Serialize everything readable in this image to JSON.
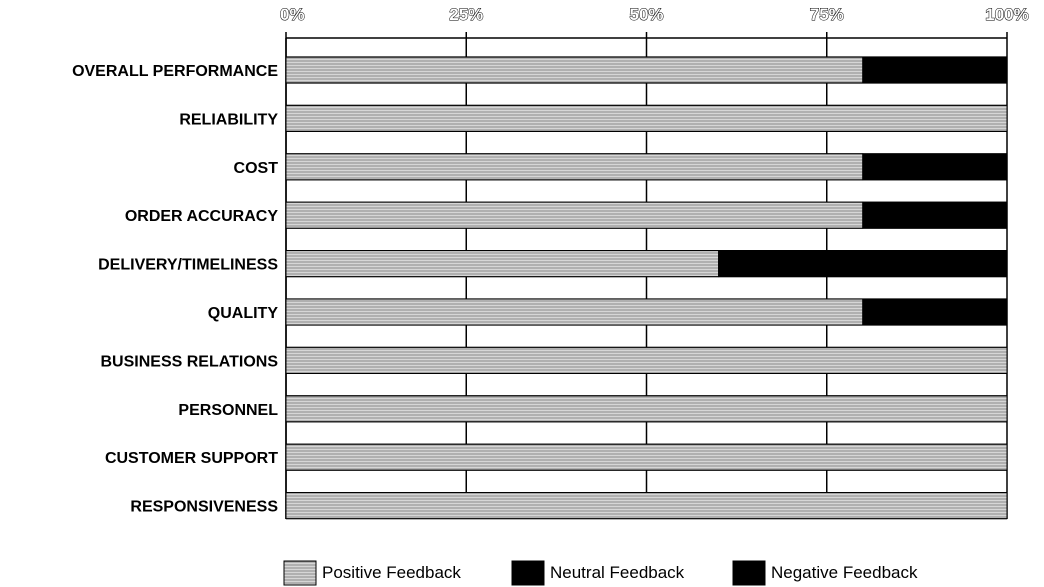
{
  "chart_data": {
    "type": "bar",
    "stacked": true,
    "orientation": "horizontal",
    "categories": [
      "OVERALL PERFORMANCE",
      "RELIABILITY",
      "COST",
      "ORDER ACCURACY",
      "DELIVERY/TIMELINESS",
      "QUALITY",
      "BUSINESS RELATIONS",
      "PERSONNEL",
      "CUSTOMER SUPPORT",
      "RESPONSIVENESS"
    ],
    "series": [
      {
        "name": "Positive Feedback",
        "values": [
          80,
          100,
          80,
          80,
          60,
          80,
          100,
          100,
          100,
          100
        ]
      },
      {
        "name": "Neutral Feedback",
        "values": [
          0,
          0,
          0,
          0,
          0,
          0,
          0,
          0,
          0,
          0
        ]
      },
      {
        "name": "Negative Feedback",
        "values": [
          20,
          0,
          20,
          20,
          40,
          20,
          0,
          0,
          0,
          0
        ]
      }
    ],
    "x_ticks": [
      "0%",
      "25%",
      "50%",
      "75%",
      "100%"
    ],
    "xlim": [
      0,
      100
    ],
    "x_axis_position": "top",
    "grid": true,
    "legend_position": "bottom",
    "colors": {
      "positive": "#cfcfcf",
      "neutral": "#000000",
      "negative": "#000000",
      "grid": "#000000"
    }
  }
}
